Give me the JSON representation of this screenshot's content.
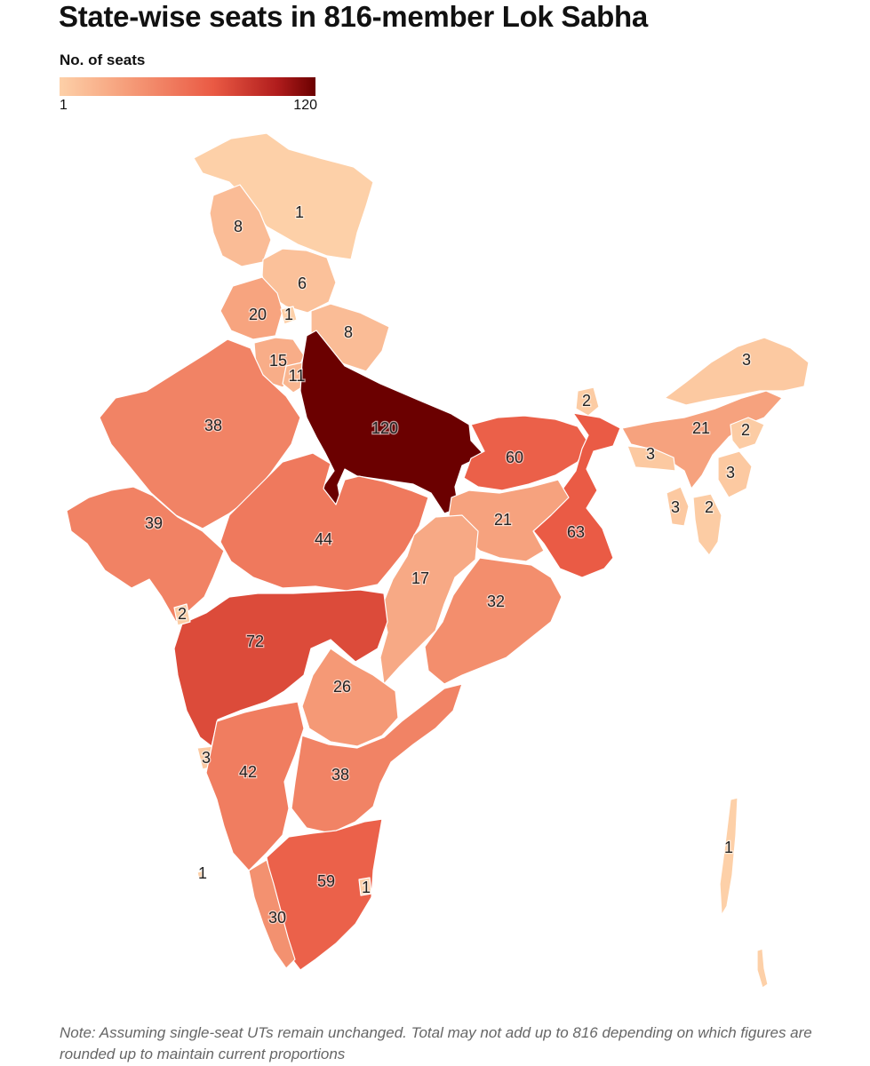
{
  "title": "State-wise seats in 816-member Lok Sabha",
  "legend": {
    "title": "No. of seats",
    "min_label": "1",
    "max_label": "120",
    "min_value": 1,
    "max_value": 120,
    "color_min": "#fdd0a8",
    "color_max": "#6b0000"
  },
  "note": "Note: Assuming single-seat UTs remain unchanged. Total may not add up to 816 depending on which figures are rounded up to maintain current proportions",
  "regions": [
    {
      "id": "ladakh",
      "seats": 1
    },
    {
      "id": "jammu-kashmir",
      "seats": 8
    },
    {
      "id": "himachal-pradesh",
      "seats": 6
    },
    {
      "id": "punjab",
      "seats": 20
    },
    {
      "id": "chandigarh",
      "seats": 1
    },
    {
      "id": "uttarakhand",
      "seats": 8
    },
    {
      "id": "haryana",
      "seats": 15
    },
    {
      "id": "delhi",
      "seats": 11
    },
    {
      "id": "rajasthan",
      "seats": 38
    },
    {
      "id": "uttar-pradesh",
      "seats": 120
    },
    {
      "id": "gujarat",
      "seats": 39
    },
    {
      "id": "madhya-pradesh",
      "seats": 44
    },
    {
      "id": "bihar",
      "seats": 60
    },
    {
      "id": "sikkim",
      "seats": 2
    },
    {
      "id": "west-bengal",
      "seats": 63
    },
    {
      "id": "jharkhand",
      "seats": 21
    },
    {
      "id": "chhattisgarh",
      "seats": 17
    },
    {
      "id": "odisha",
      "seats": 32
    },
    {
      "id": "maharashtra",
      "seats": 72
    },
    {
      "id": "dadra-nagar-haveli-daman-diu",
      "seats": 2
    },
    {
      "id": "telangana",
      "seats": 26
    },
    {
      "id": "goa",
      "seats": 3
    },
    {
      "id": "karnataka",
      "seats": 42
    },
    {
      "id": "andhra-pradesh",
      "seats": 38
    },
    {
      "id": "tamil-nadu",
      "seats": 59
    },
    {
      "id": "puducherry",
      "seats": 1
    },
    {
      "id": "kerala",
      "seats": 30
    },
    {
      "id": "lakshadweep",
      "seats": 1
    },
    {
      "id": "arunachal-pradesh",
      "seats": 3
    },
    {
      "id": "assam",
      "seats": 21
    },
    {
      "id": "nagaland",
      "seats": 2
    },
    {
      "id": "meghalaya",
      "seats": 3
    },
    {
      "id": "manipur",
      "seats": 3
    },
    {
      "id": "tripura",
      "seats": 3
    },
    {
      "id": "mizoram",
      "seats": 2
    },
    {
      "id": "andaman-nicobar",
      "seats": 1
    }
  ]
}
